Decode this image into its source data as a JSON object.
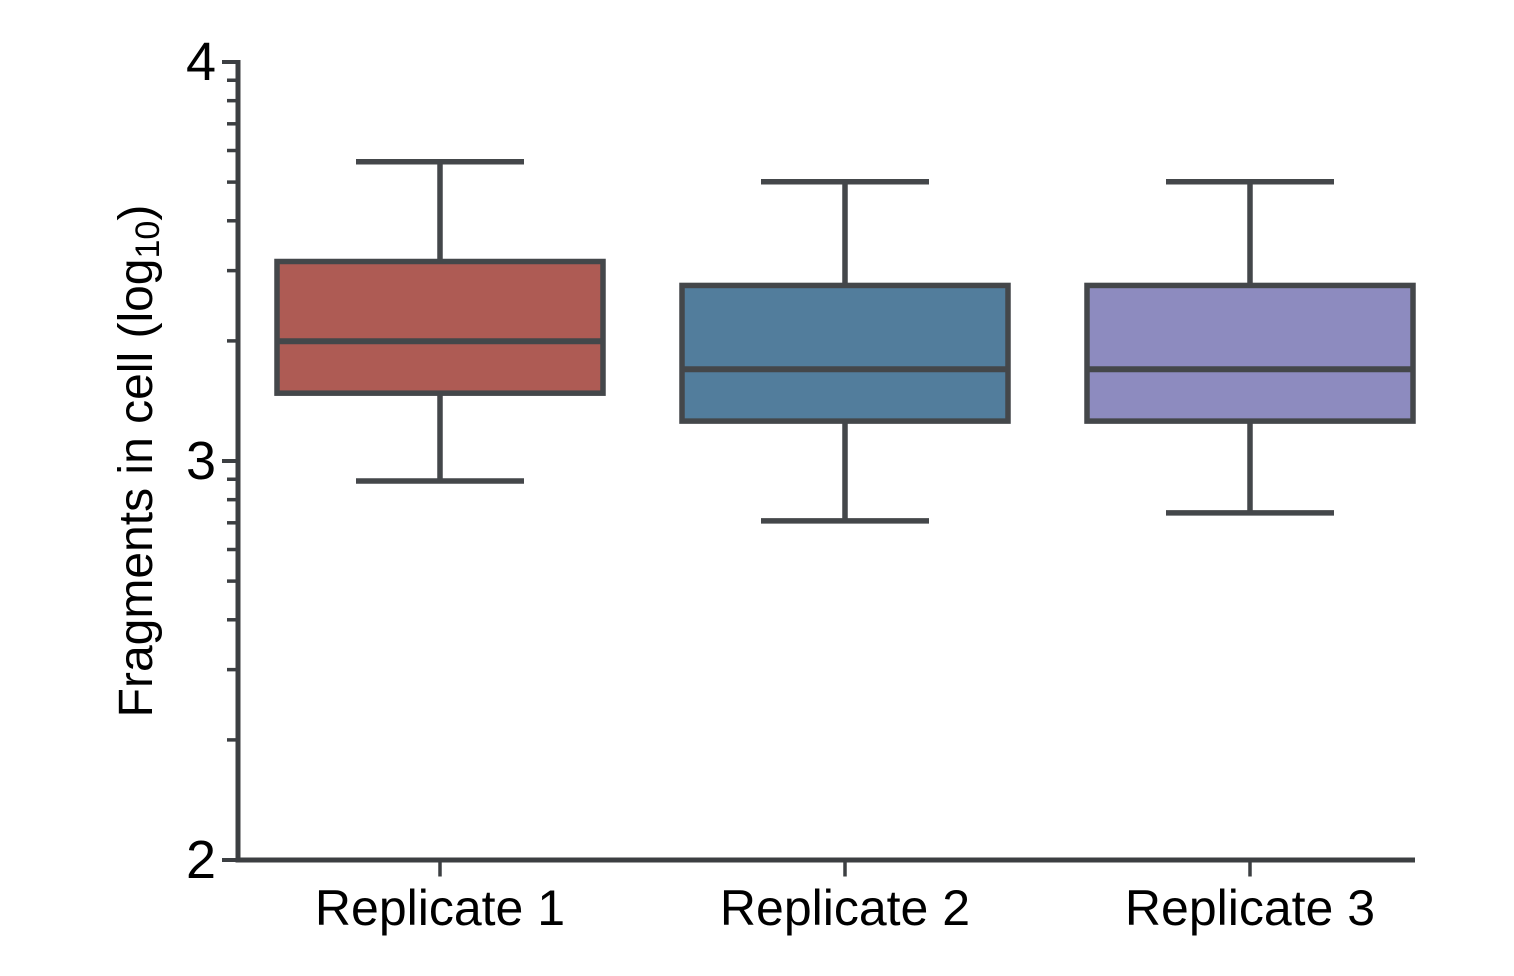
{
  "page": {
    "background_color": "#ffffff"
  },
  "chart_data": {
    "type": "boxplot",
    "title": "",
    "xlabel": "",
    "ylabel": "Fragments in cell (log10)",
    "ylabel_parts": {
      "prefix": "Fragments in cell (log",
      "subscript": "10",
      "suffix": ")"
    },
    "y_axis": {
      "scale": "log10",
      "min": 2,
      "max": 4,
      "major_tick_labels": [
        "4",
        "3",
        "2"
      ],
      "major_ticks": [
        4,
        3,
        2
      ],
      "minor_tick_multiples": [
        2,
        3,
        4,
        5,
        6,
        7,
        8,
        9
      ],
      "grid": false
    },
    "categories": [
      "Replicate 1",
      "Replicate 2",
      "Replicate 3"
    ],
    "series": [
      {
        "name": "Replicate 1",
        "fill_color": "#AE5B54",
        "whisker_low": 2.95,
        "q1": 3.17,
        "median": 3.3,
        "q3": 3.5,
        "whisker_high": 3.75
      },
      {
        "name": "Replicate 2",
        "fill_color": "#527D9C",
        "whisker_low": 2.85,
        "q1": 3.1,
        "median": 3.23,
        "q3": 3.44,
        "whisker_high": 3.7
      },
      {
        "name": "Replicate 3",
        "fill_color": "#8D8BBF",
        "whisker_low": 2.87,
        "q1": 3.1,
        "median": 3.23,
        "q3": 3.44,
        "whisker_high": 3.7
      }
    ],
    "colors": {
      "box_stroke": "#44474A",
      "axis_stroke": "#3C3F42",
      "text": "#000000"
    },
    "legend": null
  }
}
